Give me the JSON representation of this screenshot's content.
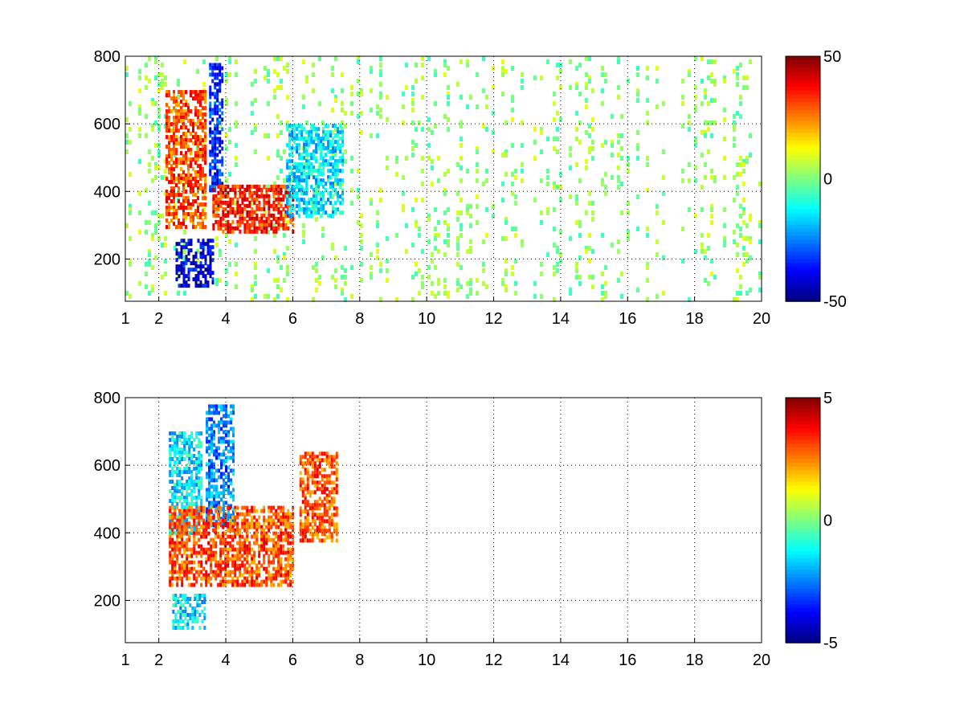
{
  "chart_data": [
    {
      "type": "heatmap",
      "title": "",
      "xlabel": "",
      "ylabel": "",
      "xlim": [
        1,
        20
      ],
      "ylim": [
        75,
        800
      ],
      "x_ticks": [
        1,
        2,
        4,
        6,
        8,
        10,
        12,
        14,
        16,
        18,
        20
      ],
      "y_ticks": [
        200,
        400,
        600,
        800
      ],
      "grid": true,
      "colormap": "jet",
      "colorbar": {
        "range": [
          -50,
          50
        ],
        "ticks": [
          -50,
          0,
          50
        ]
      },
      "features": [
        {
          "x_range": [
            2.2,
            3.4
          ],
          "y_range": [
            300,
            700
          ],
          "value": 30
        },
        {
          "x_range": [
            3.5,
            3.9
          ],
          "y_range": [
            400,
            780
          ],
          "value": -35
        },
        {
          "x_range": [
            3.6,
            6.0
          ],
          "y_range": [
            280,
            420
          ],
          "value": 35
        },
        {
          "x_range": [
            2.5,
            3.6
          ],
          "y_range": [
            120,
            260
          ],
          "value": -40
        },
        {
          "x_range": [
            5.8,
            7.5
          ],
          "y_range": [
            330,
            600
          ],
          "value": -15
        },
        {
          "x_range": [
            1.0,
            20.0
          ],
          "y_range": [
            75,
            800
          ],
          "value": 3,
          "note": "sparse scatter"
        }
      ]
    },
    {
      "type": "heatmap",
      "title": "",
      "xlabel": "",
      "ylabel": "",
      "xlim": [
        1,
        20
      ],
      "ylim": [
        75,
        800
      ],
      "x_ticks": [
        1,
        2,
        4,
        6,
        8,
        10,
        12,
        14,
        16,
        18,
        20
      ],
      "y_ticks": [
        200,
        400,
        600,
        800
      ],
      "grid": true,
      "colormap": "jet",
      "colorbar": {
        "range": [
          -5,
          5
        ],
        "ticks": [
          -5,
          0,
          5
        ]
      },
      "features": [
        {
          "x_range": [
            2.3,
            3.3
          ],
          "y_range": [
            400,
            700
          ],
          "value": -1.5
        },
        {
          "x_range": [
            3.4,
            4.2
          ],
          "y_range": [
            420,
            780
          ],
          "value": -2.5
        },
        {
          "x_range": [
            2.3,
            6.0
          ],
          "y_range": [
            250,
            480
          ],
          "value": 3
        },
        {
          "x_range": [
            6.2,
            7.3
          ],
          "y_range": [
            380,
            640
          ],
          "value": 3
        },
        {
          "x_range": [
            2.4,
            3.4
          ],
          "y_range": [
            120,
            220
          ],
          "value": -1.5
        }
      ]
    }
  ]
}
